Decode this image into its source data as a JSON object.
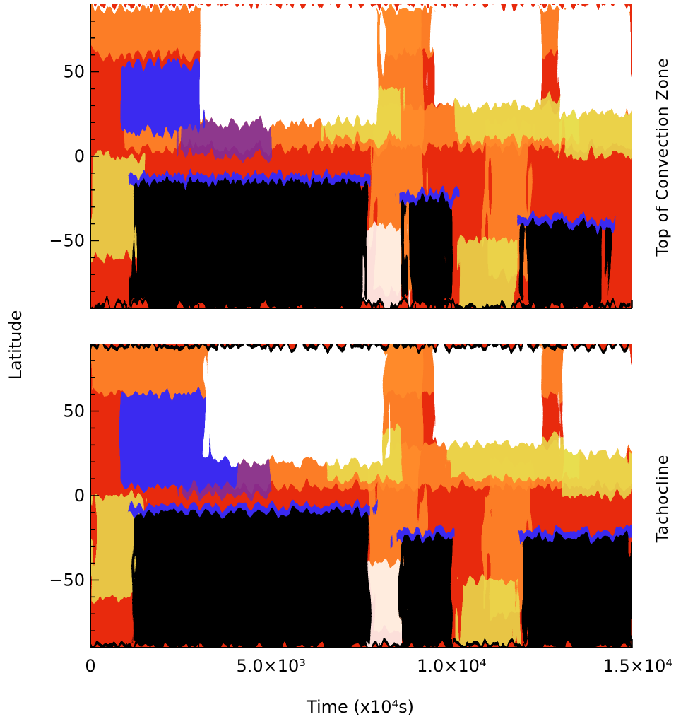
{
  "chart_data": [
    {
      "type": "heatmap",
      "panel_label": "Top of Convection Zone",
      "xlim": [
        0,
        15000
      ],
      "ylim": [
        -90,
        90
      ],
      "y_ticks": [
        {
          "value": 50,
          "label": "50"
        },
        {
          "value": 0,
          "label": "0"
        },
        {
          "value": -50,
          "label": "−50"
        }
      ],
      "features": [
        {
          "desc": "blue band",
          "x": [
            800,
            3000
          ],
          "y": [
            15,
            55
          ],
          "level": "low"
        },
        {
          "desc": "white high",
          "x": [
            3000,
            8000
          ],
          "y": [
            20,
            88
          ],
          "level": "high"
        },
        {
          "desc": "black low",
          "x": [
            1200,
            7600
          ],
          "y": [
            -88,
            -15
          ],
          "level": "lowest"
        },
        {
          "desc": "black low",
          "x": [
            8700,
            10000
          ],
          "y": [
            -88,
            -25
          ],
          "level": "lowest"
        },
        {
          "desc": "white high",
          "x": [
            9500,
            12500
          ],
          "y": [
            30,
            88
          ],
          "level": "high"
        },
        {
          "desc": "white high",
          "x": [
            13000,
            15000
          ],
          "y": [
            25,
            88
          ],
          "level": "high"
        },
        {
          "desc": "black low",
          "x": [
            12000,
            14300
          ],
          "y": [
            -88,
            -40
          ],
          "level": "lowest"
        }
      ]
    },
    {
      "type": "heatmap",
      "panel_label": "Tachocline",
      "xlim": [
        0,
        15000
      ],
      "ylim": [
        -90,
        90
      ],
      "y_ticks": [
        {
          "value": 50,
          "label": "50"
        },
        {
          "value": 0,
          "label": "0"
        },
        {
          "value": -50,
          "label": "−50"
        }
      ],
      "features": [
        {
          "desc": "blue band",
          "x": [
            800,
            4000
          ],
          "y": [
            5,
            60
          ],
          "level": "low"
        },
        {
          "desc": "white high",
          "x": [
            3200,
            8200
          ],
          "y": [
            20,
            88
          ],
          "level": "high"
        },
        {
          "desc": "black low",
          "x": [
            1200,
            7700
          ],
          "y": [
            -88,
            -10
          ],
          "level": "lowest"
        },
        {
          "desc": "black low",
          "x": [
            8600,
            10000
          ],
          "y": [
            -88,
            -25
          ],
          "level": "lowest"
        },
        {
          "desc": "white high",
          "x": [
            9500,
            12500
          ],
          "y": [
            30,
            88
          ],
          "level": "high"
        },
        {
          "desc": "white high",
          "x": [
            13000,
            15000
          ],
          "y": [
            25,
            88
          ],
          "level": "high"
        },
        {
          "desc": "black low",
          "x": [
            12000,
            15000
          ],
          "y": [
            -88,
            -25
          ],
          "level": "lowest"
        }
      ]
    }
  ],
  "axes": {
    "ylabel": "Latitude",
    "xlabel": "Time (x10⁴s)",
    "x_ticks": [
      {
        "value": 0,
        "label": "0"
      },
      {
        "value": 5000,
        "label": "5.0×10³"
      },
      {
        "value": 10000,
        "label": "1.0×10⁴"
      },
      {
        "value": 15000,
        "label": "1.5×10⁴"
      }
    ]
  },
  "colors": {
    "lowest": "#000000",
    "low": "#3a2cf0",
    "mid_low": "#7a2aa0",
    "mid": "#e8290a",
    "mid_high": "#ff8c2a",
    "high_yellow": "#e8e050",
    "high": "#ffffff"
  }
}
